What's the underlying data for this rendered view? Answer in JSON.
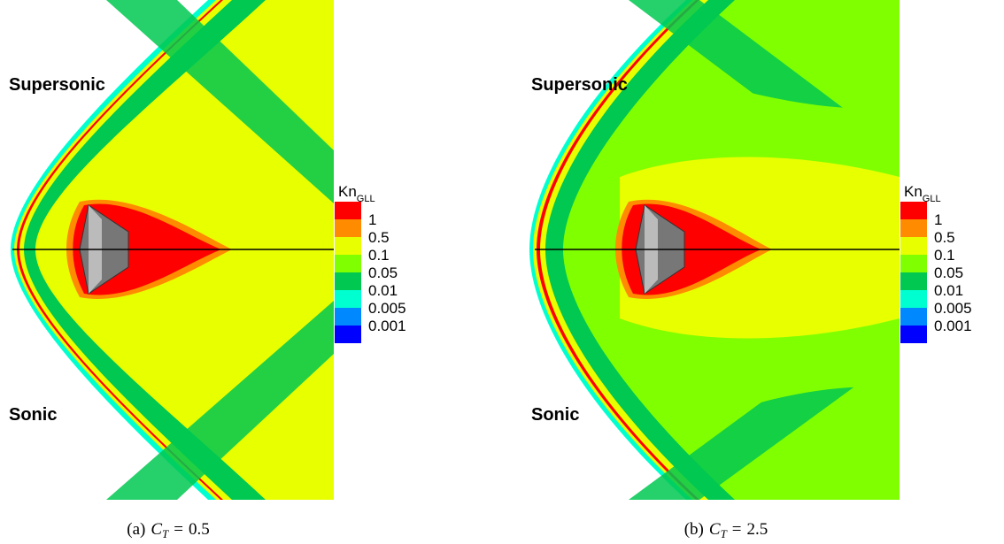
{
  "legend": {
    "title": "Kn",
    "subscript": "GLL",
    "levels": [
      1,
      0.5,
      0.1,
      0.05,
      0.01,
      0.005,
      0.001
    ],
    "colors": [
      "#ff0000",
      "#ff8c00",
      "#e8ff00",
      "#80ff00",
      "#00c850",
      "#00ffd0",
      "#0088ff",
      "#0000ff"
    ]
  },
  "panels": [
    {
      "upper_label": "Supersonic",
      "lower_label": "Sonic",
      "caption": {
        "label": "(a)",
        "symbol": "C",
        "subscript": "T",
        "relation": "=",
        "value": 0.5
      }
    },
    {
      "upper_label": "Supersonic",
      "lower_label": "Sonic",
      "caption": {
        "label": "(b)",
        "symbol": "C",
        "subscript": "T",
        "relation": "=",
        "value": 2.5
      }
    }
  ]
}
